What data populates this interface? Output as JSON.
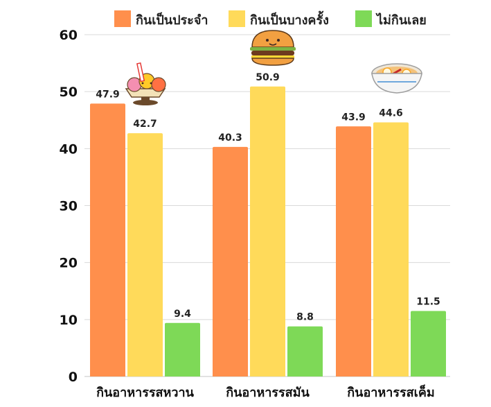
{
  "chart_data": {
    "type": "bar",
    "categories": [
      "กินอาหารรสหวาน",
      "กินอาหารรสมัน",
      "กินอาหารรสเค็ม"
    ],
    "series": [
      {
        "name": "กินเป็นประจำ",
        "color": "#FF8F4C",
        "values": [
          47.9,
          40.3,
          43.9
        ]
      },
      {
        "name": "กินเป็นบางครั้ง",
        "color": "#FFDA5A",
        "values": [
          42.7,
          50.9,
          44.6
        ]
      },
      {
        "name": "ไม่กินเลย",
        "color": "#7ED957",
        "values": [
          9.4,
          8.8,
          11.5
        ]
      }
    ],
    "ylim": [
      0,
      60
    ],
    "yticks": [
      0,
      10,
      20,
      30,
      40,
      50,
      60
    ],
    "grid": true,
    "legend_position": "top",
    "data_labels": true,
    "icons": [
      "ice-cream-sundae-icon",
      "hamburger-icon",
      "noodle-bowl-icon"
    ]
  }
}
